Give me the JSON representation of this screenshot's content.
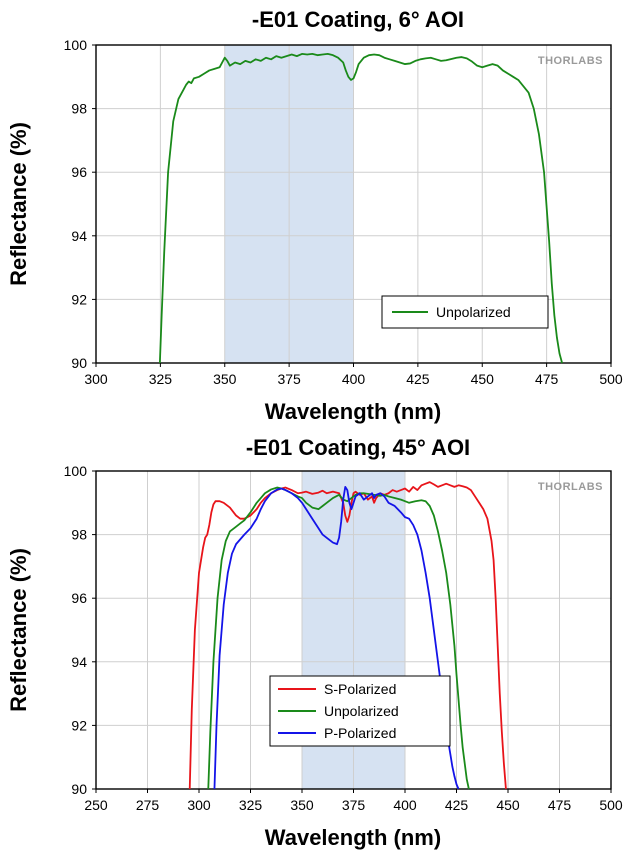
{
  "chart_data": [
    {
      "type": "line",
      "title": "-E01 Coating, 6° AOI",
      "xlabel": "Wavelength (nm)",
      "ylabel": "Reflectance (%)",
      "xlim": [
        300,
        500
      ],
      "ylim": [
        90,
        100
      ],
      "xticks": [
        "300",
        "325",
        "350",
        "375",
        "400",
        "425",
        "450",
        "475",
        "500"
      ],
      "yticks": [
        "90",
        "92",
        "94",
        "96",
        "98",
        "100"
      ],
      "grid": true,
      "shaded_band": [
        350,
        400
      ],
      "legend_position": "bottom-right",
      "logo": "THORLABS",
      "series": [
        {
          "name": "Unpolarized",
          "color": "#1a8a1a",
          "x": [
            324.8,
            325.5,
            326.5,
            328,
            330,
            332,
            334,
            335,
            336,
            337,
            338,
            340,
            342,
            344,
            346,
            348,
            350,
            351,
            352,
            354,
            356,
            358,
            360,
            362,
            364,
            366,
            368,
            370,
            372,
            374,
            376,
            378,
            380,
            382,
            384,
            386,
            388,
            390,
            392,
            394,
            396,
            397,
            398,
            399,
            400,
            401,
            402,
            404,
            406,
            408,
            410,
            412,
            414,
            416,
            418,
            420,
            422,
            424,
            426,
            428,
            430,
            432,
            434,
            436,
            438,
            440,
            442,
            444,
            446,
            448,
            450,
            452,
            454,
            456,
            458,
            460,
            462,
            464,
            466,
            468,
            470,
            472,
            474,
            476,
            477,
            478,
            479,
            480,
            481
          ],
          "y": [
            90.0,
            91.5,
            93.5,
            96.0,
            97.6,
            98.3,
            98.6,
            98.75,
            98.85,
            98.8,
            98.95,
            99.0,
            99.1,
            99.2,
            99.25,
            99.3,
            99.6,
            99.5,
            99.35,
            99.45,
            99.4,
            99.5,
            99.45,
            99.55,
            99.5,
            99.6,
            99.55,
            99.65,
            99.6,
            99.65,
            99.7,
            99.65,
            99.72,
            99.7,
            99.72,
            99.68,
            99.7,
            99.72,
            99.68,
            99.6,
            99.45,
            99.2,
            99.0,
            98.9,
            98.95,
            99.15,
            99.4,
            99.6,
            99.68,
            99.7,
            99.68,
            99.6,
            99.55,
            99.5,
            99.45,
            99.4,
            99.42,
            99.5,
            99.55,
            99.58,
            99.6,
            99.55,
            99.5,
            99.52,
            99.56,
            99.6,
            99.62,
            99.58,
            99.48,
            99.35,
            99.3,
            99.35,
            99.4,
            99.35,
            99.2,
            99.1,
            99.0,
            98.9,
            98.7,
            98.5,
            98.0,
            97.2,
            96.0,
            93.8,
            92.5,
            91.5,
            90.8,
            90.3,
            90.0
          ]
        }
      ]
    },
    {
      "type": "line",
      "title": "-E01 Coating, 45° AOI",
      "xlabel": "Wavelength (nm)",
      "ylabel": "Reflectance (%)",
      "xlim": [
        250,
        500
      ],
      "ylim": [
        90,
        100
      ],
      "xticks": [
        "250",
        "275",
        "300",
        "325",
        "350",
        "375",
        "400",
        "425",
        "450",
        "475",
        "500"
      ],
      "yticks": [
        "90",
        "92",
        "94",
        "96",
        "98",
        "100"
      ],
      "grid": true,
      "shaded_band": [
        350,
        400
      ],
      "legend_position": "bottom-center",
      "logo": "THORLABS",
      "series": [
        {
          "name": "S-Polarized",
          "color": "#e8141a",
          "x": [
            295.5,
            296.5,
            298,
            300,
            302,
            303,
            304,
            305,
            306,
            307,
            308,
            310,
            312,
            315,
            318,
            320,
            322,
            325,
            328,
            330,
            332,
            335,
            338,
            340,
            342,
            345,
            348,
            350,
            352,
            355,
            358,
            360,
            362,
            365,
            368,
            370,
            371,
            372,
            373,
            374,
            375,
            376,
            378,
            380,
            382,
            384,
            385,
            386,
            388,
            390,
            392,
            394,
            396,
            398,
            400,
            402,
            404,
            406,
            408,
            410,
            412,
            414,
            416,
            418,
            420,
            422,
            424,
            426,
            428,
            430,
            432,
            434,
            436,
            438,
            440,
            442,
            443,
            444,
            445,
            446,
            447,
            448,
            449
          ],
          "y": [
            90.0,
            92.5,
            95.0,
            96.8,
            97.6,
            97.9,
            98.0,
            98.3,
            98.7,
            98.95,
            99.05,
            99.05,
            99.0,
            98.85,
            98.6,
            98.5,
            98.5,
            98.6,
            98.8,
            99.0,
            99.15,
            99.3,
            99.4,
            99.45,
            99.48,
            99.4,
            99.3,
            99.32,
            99.35,
            99.28,
            99.32,
            99.38,
            99.3,
            99.35,
            99.3,
            99.0,
            98.6,
            98.4,
            98.6,
            99.0,
            99.3,
            99.35,
            99.25,
            99.3,
            99.1,
            99.2,
            99.0,
            99.15,
            99.3,
            99.25,
            99.3,
            99.4,
            99.35,
            99.4,
            99.45,
            99.35,
            99.5,
            99.4,
            99.55,
            99.6,
            99.65,
            99.58,
            99.5,
            99.55,
            99.6,
            99.55,
            99.5,
            99.55,
            99.52,
            99.48,
            99.4,
            99.2,
            99.0,
            98.8,
            98.5,
            97.8,
            97.2,
            96.0,
            94.5,
            93.0,
            91.8,
            90.8,
            90.0
          ]
        },
        {
          "name": "Unpolarized",
          "color": "#1a8a1a",
          "x": [
            304.5,
            305.5,
            307,
            309,
            311,
            313,
            315,
            318,
            320,
            322,
            325,
            328,
            330,
            332,
            335,
            338,
            340,
            342,
            345,
            348,
            350,
            352,
            355,
            358,
            360,
            362,
            365,
            368,
            370,
            372,
            374,
            376,
            378,
            380,
            382,
            385,
            388,
            390,
            392,
            395,
            398,
            400,
            402,
            405,
            408,
            410,
            412,
            414,
            416,
            418,
            420,
            422,
            424,
            425,
            426,
            427,
            428,
            429,
            430,
            431
          ],
          "y": [
            90.0,
            91.8,
            94.0,
            96.0,
            97.2,
            97.8,
            98.1,
            98.25,
            98.35,
            98.45,
            98.7,
            99.0,
            99.15,
            99.3,
            99.42,
            99.48,
            99.45,
            99.4,
            99.3,
            99.2,
            99.15,
            99.0,
            98.85,
            98.8,
            98.9,
            99.0,
            99.15,
            99.25,
            99.1,
            99.05,
            99.15,
            99.25,
            99.3,
            99.3,
            99.28,
            99.25,
            99.22,
            99.25,
            99.2,
            99.15,
            99.1,
            99.05,
            99.0,
            99.05,
            99.08,
            99.05,
            98.9,
            98.6,
            98.1,
            97.5,
            96.8,
            95.8,
            94.5,
            93.6,
            92.8,
            92.0,
            91.3,
            90.8,
            90.3,
            90.0
          ]
        },
        {
          "name": "P-Polarized",
          "color": "#1414e8",
          "x": [
            307.5,
            308.5,
            310,
            312,
            314,
            316,
            318,
            320,
            322,
            325,
            328,
            330,
            332,
            335,
            338,
            340,
            342,
            345,
            348,
            350,
            352,
            355,
            358,
            360,
            362,
            365,
            367,
            368,
            369,
            370,
            371,
            372,
            373,
            374,
            375,
            376,
            378,
            380,
            382,
            384,
            385,
            386,
            388,
            390,
            392,
            395,
            398,
            400,
            402,
            404,
            406,
            408,
            410,
            412,
            414,
            416,
            418,
            420,
            421,
            422,
            423,
            424,
            425,
            426
          ],
          "y": [
            90.0,
            92.0,
            94.2,
            95.8,
            96.8,
            97.4,
            97.7,
            97.85,
            98.0,
            98.2,
            98.5,
            98.8,
            99.05,
            99.3,
            99.42,
            99.45,
            99.4,
            99.3,
            99.15,
            99.0,
            98.8,
            98.5,
            98.2,
            98.0,
            97.9,
            97.75,
            97.7,
            97.9,
            98.4,
            99.1,
            99.5,
            99.4,
            99.0,
            98.8,
            99.0,
            99.2,
            99.3,
            99.1,
            99.2,
            99.3,
            99.15,
            99.25,
            99.3,
            99.2,
            99.0,
            98.9,
            98.7,
            98.55,
            98.5,
            98.3,
            98.0,
            97.5,
            96.8,
            96.0,
            95.0,
            94.0,
            93.0,
            92.0,
            91.5,
            91.1,
            90.7,
            90.4,
            90.15,
            90.0
          ]
        }
      ]
    }
  ]
}
